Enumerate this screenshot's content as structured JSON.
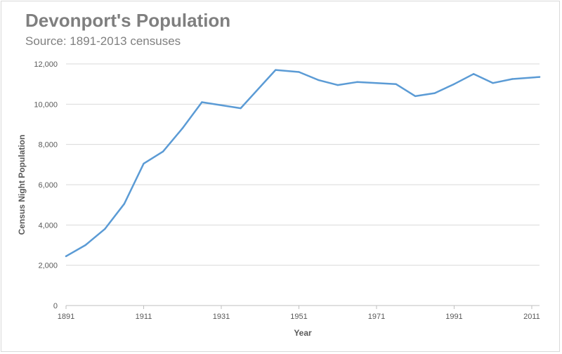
{
  "chart_data": {
    "type": "line",
    "title": "Devonport's Population",
    "subtitle": "Source: 1891-2013 censuses",
    "xlabel": "Year",
    "ylabel": "Census Night Population",
    "xlim": [
      1891,
      2013
    ],
    "ylim": [
      0,
      12000
    ],
    "x_ticks": [
      1891,
      1911,
      1931,
      1951,
      1971,
      1991,
      2011
    ],
    "y_ticks": [
      0,
      2000,
      4000,
      6000,
      8000,
      10000,
      12000
    ],
    "y_tick_labels": [
      "0",
      "2,000",
      "4,000",
      "6,000",
      "8,000",
      "10,000",
      "12,000"
    ],
    "grid": true,
    "legend": "none",
    "line_color": "#5b9bd5",
    "series": [
      {
        "name": "Population",
        "x": [
          1891,
          1896,
          1901,
          1906,
          1911,
          1916,
          1921,
          1926,
          1936,
          1945,
          1951,
          1956,
          1961,
          1966,
          1971,
          1976,
          1981,
          1986,
          1991,
          1996,
          2001,
          2006,
          2013
        ],
        "y": [
          2450,
          3000,
          3800,
          5050,
          7050,
          7650,
          8800,
          10100,
          9800,
          11700,
          11600,
          11200,
          10950,
          11100,
          11050,
          11000,
          10400,
          10550,
          11000,
          11500,
          11050,
          11250,
          11350
        ]
      }
    ]
  }
}
